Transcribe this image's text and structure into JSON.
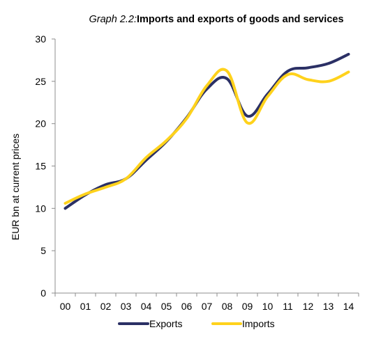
{
  "colors": {
    "exports": "#2b3065",
    "imports": "#ffd21c",
    "axis": "#8c8c8c"
  },
  "chart_data": {
    "type": "line",
    "title_prefix": "Graph 2.2:",
    "title": "Imports and exports of goods and services",
    "ylabel": "EUR bn at current prices",
    "xlabel": "",
    "categories": [
      "00",
      "01",
      "02",
      "03",
      "04",
      "05",
      "06",
      "07",
      "08",
      "09",
      "10",
      "11",
      "12",
      "13",
      "14"
    ],
    "ylim": [
      0,
      30
    ],
    "yticks": [
      0,
      5,
      10,
      15,
      20,
      25,
      30
    ],
    "grid": false,
    "legend_position": "bottom",
    "series": [
      {
        "name": "Exports",
        "color": "#2b3065",
        "values": [
          10.0,
          11.6,
          12.8,
          13.5,
          15.7,
          17.9,
          20.7,
          24.1,
          25.3,
          20.9,
          23.5,
          26.2,
          26.6,
          27.1,
          28.2
        ]
      },
      {
        "name": "Imports",
        "color": "#ffd21c",
        "values": [
          10.6,
          11.7,
          12.5,
          13.5,
          16.0,
          18.0,
          20.6,
          24.5,
          26.2,
          20.1,
          23.2,
          25.8,
          25.2,
          25.0,
          26.1
        ]
      }
    ]
  }
}
